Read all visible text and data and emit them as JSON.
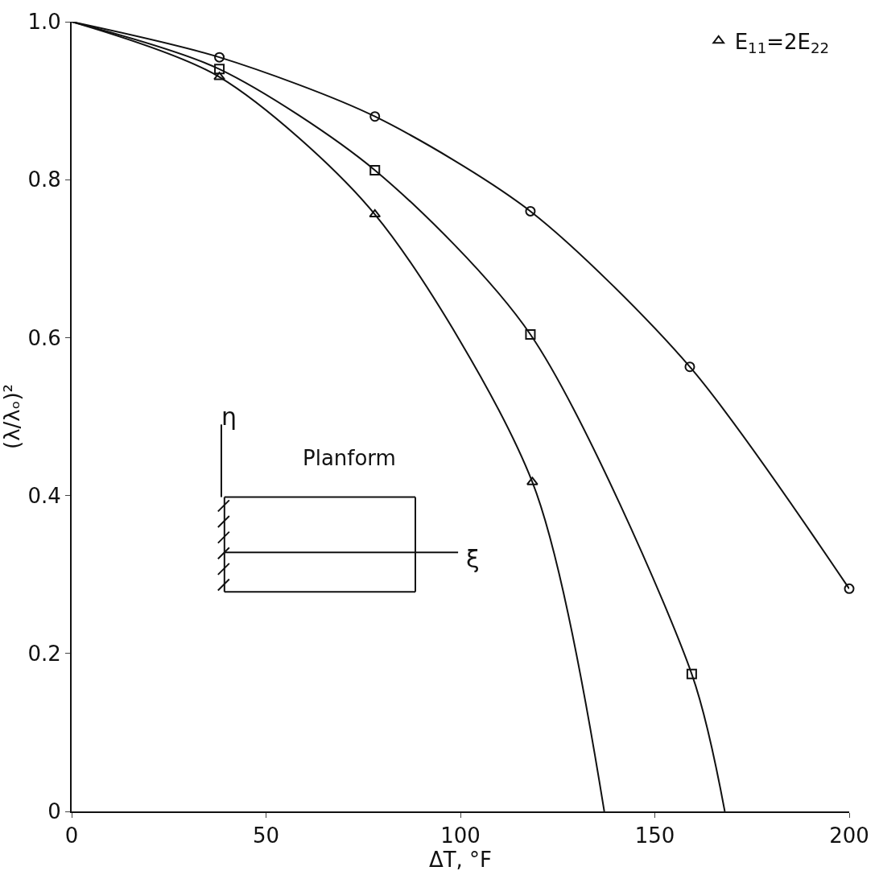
{
  "chart_data": {
    "type": "scatter",
    "xlabel": "ΔT, °F",
    "ylabel": "(λ/λₒ)²",
    "xlim": [
      0,
      200
    ],
    "xticks": [
      0,
      50,
      100,
      150,
      200
    ],
    "ylim": [
      0,
      1
    ],
    "yticks": [
      0,
      {
        "value": 0.2,
        "label": "0.2"
      },
      {
        "value": 0.4,
        "label": "0.4"
      },
      {
        "value": 0.6,
        "label": "0.6"
      },
      {
        "value": 0.8,
        "label": "0.8"
      },
      {
        "value": 1,
        "label": "1.0"
      }
    ],
    "grid": false,
    "legend": "top right",
    "line_style": "solid",
    "annotations": [
      "Planform",
      "η",
      "ξ"
    ],
    "series": [
      {
        "type": "line",
        "marker": "none",
        "color": "#111111",
        "x": [
          0,
          38,
          78,
          118,
          159,
          200
        ],
        "values": [
          1,
          0.955,
          0.88,
          0.76,
          0.563,
          0.282
        ]
      },
      {
        "type": "line",
        "marker": "none",
        "color": "#111111",
        "x": [
          0,
          38,
          78,
          118,
          159.5,
          168
        ],
        "values": [
          1,
          0.94,
          0.812,
          0.604,
          0.174,
          0
        ]
      },
      {
        "type": "line",
        "marker": "none",
        "color": "#111111",
        "x": [
          0,
          38,
          78,
          118.5,
          137
        ],
        "values": [
          1,
          0.93,
          0.756,
          0.417,
          0
        ]
      },
      {
        "marker": "circle",
        "color": "#111111",
        "x": [
          38,
          78,
          118,
          159,
          200
        ],
        "values": [
          0.955,
          0.88,
          0.76,
          0.563,
          0.282
        ]
      },
      {
        "marker": "square",
        "color": "#111111",
        "x": [
          38,
          78,
          118,
          159.5
        ],
        "values": [
          0.94,
          0.812,
          0.604,
          0.174
        ]
      },
      {
        "name": "E$_{11}$=2E$_{22}$",
        "marker": "triangle",
        "color": "#111111",
        "x": [
          38,
          78,
          118.5
        ],
        "values": [
          0.93,
          0.756,
          0.417
        ]
      }
    ]
  }
}
